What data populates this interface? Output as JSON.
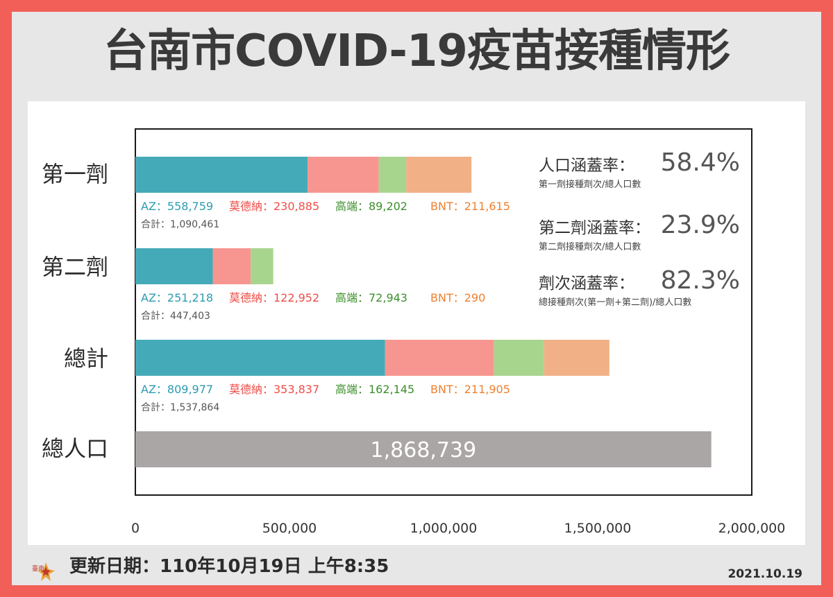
{
  "title": "台南市COVID-19疫苗接種情形",
  "footer": {
    "update": "更新日期：110年10月19日 上午8:35",
    "date": "2021.10.19"
  },
  "colors": {
    "AZ": "#45aab8",
    "Moderna": "#f79690",
    "Medigen": "#a8d58e",
    "BNT": "#f2b087",
    "population": "#aaa6a5",
    "AZ_text": "#2b9bb0",
    "Moderna_text": "#ef4d48",
    "Medigen_text": "#3b8f2a",
    "BNT_text": "#ef7f2d"
  },
  "coverage": [
    {
      "label": "人口涵蓋率：",
      "value": "58.4%",
      "note": "第一劑接種劑次/總人口數"
    },
    {
      "label": "第二劑涵蓋率：",
      "value": "23.9%",
      "note": "第二劑接種劑次/總人口數"
    },
    {
      "label": "劑次涵蓋率：",
      "value": "82.3%",
      "note": "總接種劑次(第一劑+第二劑)/總人口數"
    }
  ],
  "chart_data": {
    "type": "bar",
    "orientation": "horizontal",
    "stacked": true,
    "xlim": [
      0,
      2000000
    ],
    "x_ticks": [
      "0",
      "500,000",
      "1,000,000",
      "1,500,000",
      "2,000,000"
    ],
    "x_tick_values": [
      0,
      500000,
      1000000,
      1500000,
      2000000
    ],
    "categories": [
      "第一劑",
      "第二劑",
      "總計",
      "總人口"
    ],
    "series": [
      {
        "key": "AZ",
        "values": [
          558759,
          251218,
          809977,
          null
        ]
      },
      {
        "key": "Moderna",
        "values": [
          230885,
          122952,
          353837,
          null
        ]
      },
      {
        "key": "Medigen",
        "values": [
          89202,
          72943,
          162145,
          null
        ]
      },
      {
        "key": "BNT",
        "values": [
          211615,
          290,
          211905,
          null
        ]
      }
    ],
    "population": {
      "value": 1868739,
      "label": "1,868,739"
    },
    "data_labels": [
      {
        "AZ": "AZ：558,759",
        "Moderna": "莫德納：230,885",
        "Medigen": "高端：89,202",
        "BNT": "BNT：211,615",
        "total": "合計：1,090,461"
      },
      {
        "AZ": "AZ：251,218",
        "Moderna": "莫德納：122,952",
        "Medigen": "高端：72,943",
        "BNT": "BNT：290",
        "total": "合計：447,403"
      },
      {
        "AZ": "AZ：809,977",
        "Moderna": "莫德納：353,837",
        "Medigen": "高端：162,145",
        "BNT": "BNT：211,905",
        "total": "合計：1,537,864"
      }
    ]
  }
}
